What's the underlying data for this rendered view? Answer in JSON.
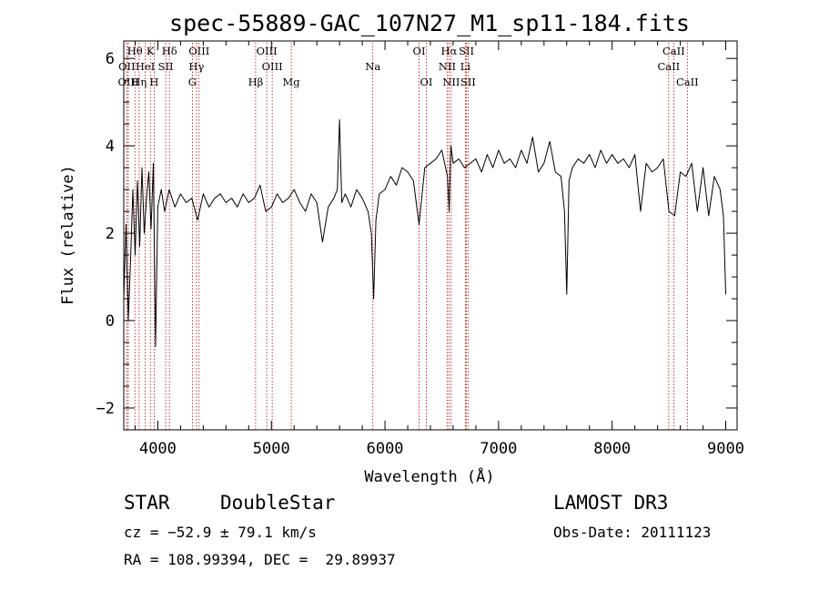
{
  "chart_data": {
    "type": "line",
    "title": "spec-55889-GAC_107N27_M1_sp11-184.fits",
    "xlabel": "Wavelength (Å)",
    "ylabel": "Flux (relative)",
    "xlim": [
      3700,
      9100
    ],
    "ylim": [
      -2.5,
      6.4
    ],
    "x_ticks": [
      4000,
      5000,
      6000,
      7000,
      8000,
      9000
    ],
    "x_tick_labels": [
      "4000",
      "5000",
      "6000",
      "7000",
      "8000",
      "9000"
    ],
    "y_ticks": [
      -2,
      0,
      2,
      4,
      6
    ],
    "y_tick_labels": [
      "−2",
      "0",
      "2",
      "4",
      "6"
    ],
    "series": [
      {
        "name": "flux",
        "x": [
          3700,
          3720,
          3740,
          3760,
          3780,
          3800,
          3820,
          3840,
          3860,
          3880,
          3900,
          3920,
          3940,
          3960,
          3980,
          4000,
          4030,
          4060,
          4100,
          4150,
          4200,
          4250,
          4300,
          4350,
          4400,
          4450,
          4500,
          4550,
          4600,
          4650,
          4700,
          4750,
          4800,
          4850,
          4900,
          4950,
          5000,
          5050,
          5100,
          5150,
          5200,
          5250,
          5300,
          5350,
          5400,
          5450,
          5500,
          5550,
          5580,
          5600,
          5620,
          5650,
          5700,
          5750,
          5800,
          5850,
          5880,
          5900,
          5920,
          5950,
          6000,
          6050,
          6100,
          6150,
          6200,
          6250,
          6300,
          6350,
          6400,
          6450,
          6500,
          6550,
          6565,
          6580,
          6600,
          6650,
          6700,
          6750,
          6800,
          6850,
          6900,
          6950,
          7000,
          7050,
          7100,
          7150,
          7200,
          7250,
          7300,
          7350,
          7400,
          7450,
          7500,
          7550,
          7580,
          7600,
          7620,
          7650,
          7700,
          7750,
          7800,
          7850,
          7900,
          7950,
          8000,
          8050,
          8100,
          8150,
          8200,
          8250,
          8300,
          8350,
          8400,
          8450,
          8500,
          8550,
          8600,
          8650,
          8700,
          8750,
          8800,
          8850,
          8900,
          8950,
          8980,
          9000
        ],
        "y": [
          0.5,
          2.2,
          0.0,
          1.4,
          3.0,
          1.5,
          3.2,
          1.7,
          3.5,
          2.0,
          2.8,
          3.4,
          2.1,
          3.6,
          -0.6,
          2.6,
          3.0,
          2.5,
          3.0,
          2.6,
          2.9,
          2.7,
          2.8,
          2.3,
          2.9,
          2.6,
          2.8,
          2.9,
          2.7,
          2.8,
          2.6,
          2.9,
          2.7,
          2.8,
          3.1,
          2.5,
          2.6,
          2.9,
          2.7,
          2.8,
          3.0,
          2.7,
          2.5,
          2.9,
          2.7,
          1.8,
          2.6,
          2.8,
          3.0,
          4.6,
          2.7,
          2.9,
          2.6,
          3.0,
          2.8,
          2.5,
          2.0,
          0.5,
          2.3,
          2.9,
          3.0,
          3.3,
          3.1,
          3.5,
          3.4,
          3.2,
          2.2,
          3.5,
          3.6,
          3.7,
          3.9,
          3.3,
          2.5,
          4.0,
          3.6,
          3.7,
          3.5,
          3.6,
          3.7,
          3.4,
          3.8,
          3.5,
          3.9,
          3.6,
          3.7,
          3.5,
          3.9,
          3.6,
          4.2,
          3.4,
          3.6,
          4.1,
          3.4,
          3.3,
          2.5,
          0.6,
          3.2,
          3.5,
          3.7,
          3.6,
          3.8,
          3.5,
          3.9,
          3.6,
          3.8,
          3.6,
          3.7,
          3.5,
          3.8,
          2.5,
          3.6,
          3.4,
          3.5,
          3.7,
          2.5,
          2.4,
          3.4,
          3.3,
          3.6,
          2.5,
          3.5,
          2.4,
          3.3,
          3.0,
          2.4,
          0.6
        ]
      }
    ],
    "spectral_lines": [
      {
        "name": "Hθ",
        "x": 3798,
        "row": 0
      },
      {
        "name": "K",
        "x": 3934,
        "row": 0
      },
      {
        "name": "Hδ",
        "x": 4102,
        "row": 0
      },
      {
        "name": "OIII",
        "x": 4363,
        "row": 0
      },
      {
        "name": "OIII",
        "x": 4959,
        "row": 0
      },
      {
        "name": "OI",
        "x": 6300,
        "row": 0
      },
      {
        "name": "Hα",
        "x": 6563,
        "row": 0
      },
      {
        "name": "SII",
        "x": 6717,
        "row": 0
      },
      {
        "name": "CaII",
        "x": 8542,
        "row": 0
      },
      {
        "name": "OII",
        "x": 3727,
        "row": 1
      },
      {
        "name": "HeI",
        "x": 3889,
        "row": 1
      },
      {
        "name": "SII",
        "x": 4069,
        "row": 1
      },
      {
        "name": "Hγ",
        "x": 4340,
        "row": 1
      },
      {
        "name": "OIII",
        "x": 5007,
        "row": 1
      },
      {
        "name": "Na",
        "x": 5893,
        "row": 1
      },
      {
        "name": "NII",
        "x": 6548,
        "row": 1
      },
      {
        "name": "Li",
        "x": 6708,
        "row": 1
      },
      {
        "name": "CaII",
        "x": 8498,
        "row": 1
      },
      {
        "name": "OIII",
        "x": 3740,
        "row": 2
      },
      {
        "name": "Hη",
        "x": 3835,
        "row": 2
      },
      {
        "name": "H",
        "x": 3968,
        "row": 2
      },
      {
        "name": "G",
        "x": 4304,
        "row": 2
      },
      {
        "name": "Hβ",
        "x": 4861,
        "row": 2
      },
      {
        "name": "Mg",
        "x": 5175,
        "row": 2
      },
      {
        "name": "OI",
        "x": 6364,
        "row": 2
      },
      {
        "name": "NII",
        "x": 6583,
        "row": 2
      },
      {
        "name": "SII",
        "x": 6731,
        "row": 2
      },
      {
        "name": "CaII",
        "x": 8662,
        "row": 2
      }
    ],
    "line_color": "#000000",
    "marker_line_color": "#c00000"
  },
  "info": {
    "object_class": "STAR",
    "subclass": "DoubleStar",
    "survey": "LAMOST DR3",
    "redshift": "cz = −52.9 ± 79.1 km/s",
    "obs_date": "Obs-Date: 20111123",
    "coords": "RA = 108.99394, DEC =  29.89937"
  }
}
